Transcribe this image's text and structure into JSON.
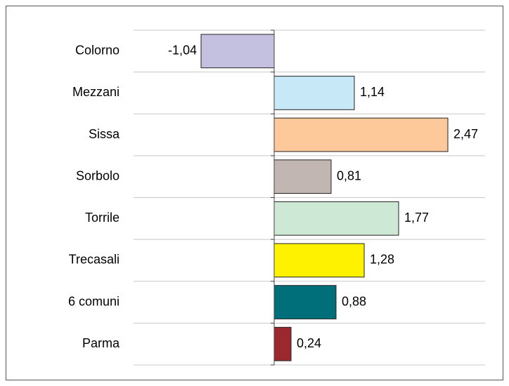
{
  "chart_data": {
    "type": "bar",
    "orientation": "horizontal",
    "categories": [
      "Colorno",
      "Mezzani",
      "Sissa",
      "Sorbolo",
      "Torrile",
      "Trecasali",
      "6 comuni",
      "Parma"
    ],
    "values": [
      -1.04,
      1.14,
      2.47,
      0.81,
      1.77,
      1.28,
      0.88,
      0.24
    ],
    "value_labels": [
      "-1,04",
      "1,14",
      "2,47",
      "0,81",
      "1,77",
      "1,28",
      "0,88",
      "0,24"
    ],
    "colors": [
      "#c4c0e0",
      "#c7e8f7",
      "#fdc99a",
      "#c2b6b2",
      "#cde9d6",
      "#fff200",
      "#006f7a",
      "#9a282e"
    ],
    "xlim": [
      -2,
      3
    ],
    "grid": true
  }
}
